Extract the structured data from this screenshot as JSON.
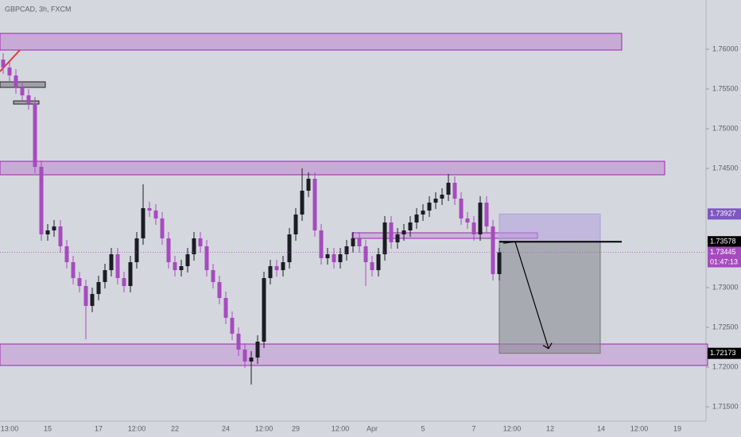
{
  "chart_data": {
    "type": "candlestick",
    "title": "GBPCAD, 3h, FXCM",
    "up_color": "#1c1c24",
    "down_color": "#a64bbf",
    "ylim": [
      1.7132,
      1.7662
    ],
    "yticks": [
      {
        "value": 1.76,
        "label": "1.76000"
      },
      {
        "value": 1.755,
        "label": "1.75500"
      },
      {
        "value": 1.75,
        "label": "1.75000"
      },
      {
        "value": 1.745,
        "label": "1.74500"
      },
      {
        "value": 1.73,
        "label": "1.73000"
      },
      {
        "value": 1.725,
        "label": "1.72500"
      },
      {
        "value": 1.72,
        "label": "1.72000"
      },
      {
        "value": 1.715,
        "label": "1.71500"
      }
    ],
    "categories": [
      null,
      "13:00",
      null,
      null,
      null,
      null,
      null,
      "15",
      null,
      null,
      null,
      null,
      null,
      null,
      null,
      "17",
      null,
      null,
      null,
      null,
      null,
      "12:00",
      null,
      null,
      null,
      null,
      null,
      "22",
      null,
      null,
      null,
      null,
      null,
      null,
      null,
      "24",
      null,
      null,
      null,
      null,
      null,
      "12:00",
      null,
      null,
      null,
      null,
      "29",
      null,
      null,
      null,
      null,
      null,
      null,
      "12:00",
      null,
      null,
      null,
      null,
      "Apr",
      null,
      null,
      null,
      null,
      null,
      null,
      null,
      "5",
      null,
      null,
      null,
      null,
      null,
      null,
      null,
      "7",
      null,
      null,
      null,
      null,
      null,
      "12:00",
      null,
      null,
      null,
      null,
      null,
      "12",
      null,
      null,
      null,
      null,
      null,
      null,
      null,
      "14",
      null,
      null,
      null,
      null,
      null,
      "12:00",
      null,
      null,
      null,
      null,
      null,
      "19",
      null,
      null,
      null
    ],
    "open": [
      1.7587,
      1.7577,
      1.7567,
      1.7552,
      1.7542,
      1.7532,
      1.7452,
      1.7367,
      1.7372,
      1.7377,
      1.7352,
      1.7332,
      1.7312,
      1.7302,
      1.7277,
      1.7292,
      1.7307,
      1.7322,
      1.7342,
      1.7312,
      1.7302,
      1.7332,
      1.7362,
      1.74,
      1.7397,
      1.7387,
      1.7362,
      1.7332,
      1.7322,
      1.7327,
      1.7342,
      1.7362,
      1.7352,
      1.7322,
      1.7307,
      1.7287,
      1.7262,
      1.7242,
      1.7222,
      1.7207,
      1.7212,
      1.7232,
      1.7312,
      1.7327,
      1.7322,
      1.7332,
      1.7367,
      1.7392,
      1.7422,
      1.7437,
      1.7372,
      1.7337,
      1.7342,
      1.7332,
      1.7342,
      1.7352,
      1.7362,
      1.7352,
      1.7332,
      1.7322,
      1.7342,
      1.7382,
      1.7357,
      1.7367,
      1.7372,
      1.7382,
      1.7392,
      1.7397,
      1.7407,
      1.7412,
      1.7417,
      1.7432,
      1.7412,
      1.7387,
      1.7382,
      1.7367,
      1.7407,
      1.7377,
      1.7317,
      null,
      null,
      null,
      null,
      null,
      null,
      null,
      null,
      null,
      null,
      null,
      null,
      null,
      null,
      null,
      null,
      null,
      null,
      null,
      null,
      null,
      null,
      null,
      null,
      null,
      null,
      null,
      null,
      null,
      null,
      null
    ],
    "high": [
      1.7595,
      1.7585,
      1.7575,
      1.756,
      1.755,
      1.754,
      1.746,
      1.738,
      1.7385,
      1.7385,
      1.736,
      1.734,
      1.732,
      1.731,
      1.73,
      1.7315,
      1.733,
      1.735,
      1.735,
      1.732,
      1.734,
      1.737,
      1.743,
      1.7408,
      1.7405,
      1.7395,
      1.737,
      1.734,
      1.7335,
      1.735,
      1.737,
      1.737,
      1.736,
      1.733,
      1.7315,
      1.7295,
      1.727,
      1.725,
      1.723,
      1.722,
      1.724,
      1.732,
      1.7335,
      1.7335,
      1.734,
      1.7375,
      1.74,
      1.745,
      1.7445,
      1.7445,
      1.738,
      1.735,
      1.735,
      1.735,
      1.736,
      1.737,
      1.737,
      1.736,
      1.734,
      1.735,
      1.739,
      1.739,
      1.7375,
      1.738,
      1.739,
      1.74,
      1.7405,
      1.7415,
      1.742,
      1.7425,
      1.7443,
      1.744,
      1.742,
      1.7395,
      1.739,
      1.7415,
      1.7415,
      1.7385,
      1.735,
      null,
      null,
      null,
      null,
      null,
      null,
      null,
      null,
      null,
      null,
      null,
      null,
      null,
      null,
      null,
      null,
      null,
      null,
      null,
      null,
      null,
      null,
      null,
      null,
      null,
      null,
      null,
      null,
      null,
      null,
      null
    ],
    "low": [
      1.7569,
      1.7559,
      1.7544,
      1.7534,
      1.7524,
      1.7444,
      1.7359,
      1.7359,
      1.7364,
      1.7344,
      1.7324,
      1.7304,
      1.7294,
      1.7235,
      1.7269,
      1.7284,
      1.7299,
      1.7314,
      1.7304,
      1.7294,
      1.7294,
      1.7324,
      1.7354,
      1.7389,
      1.7379,
      1.7354,
      1.7324,
      1.7314,
      1.7314,
      1.7319,
      1.7334,
      1.7344,
      1.7314,
      1.7299,
      1.7279,
      1.7254,
      1.7234,
      1.7214,
      1.7199,
      1.7178,
      1.7204,
      1.7224,
      1.7304,
      1.7314,
      1.7314,
      1.7324,
      1.7359,
      1.7384,
      1.7414,
      1.7364,
      1.7329,
      1.7329,
      1.7324,
      1.7324,
      1.7334,
      1.7344,
      1.7344,
      1.7302,
      1.7314,
      1.7314,
      1.7334,
      1.7349,
      1.7349,
      1.7359,
      1.7364,
      1.7374,
      1.7384,
      1.7389,
      1.7399,
      1.7404,
      1.7409,
      1.7404,
      1.7379,
      1.7374,
      1.7359,
      1.7359,
      1.7369,
      1.7309,
      1.7309,
      null,
      null,
      null,
      null,
      null,
      null,
      null,
      null,
      null,
      null,
      null,
      null,
      null,
      null,
      null,
      null,
      null,
      null,
      null,
      null,
      null,
      null,
      null,
      null,
      null,
      null,
      null,
      null,
      null,
      null,
      null
    ],
    "close": [
      1.7577,
      1.7567,
      1.7552,
      1.7542,
      1.7532,
      1.7452,
      1.7367,
      1.7372,
      1.7377,
      1.7352,
      1.7332,
      1.7312,
      1.7302,
      1.7277,
      1.7292,
      1.7307,
      1.7322,
      1.7342,
      1.7312,
      1.7302,
      1.7332,
      1.7362,
      1.74,
      1.7397,
      1.7387,
      1.7362,
      1.7332,
      1.7322,
      1.7327,
      1.7342,
      1.7362,
      1.7352,
      1.7322,
      1.7307,
      1.7287,
      1.7262,
      1.7242,
      1.7222,
      1.7207,
      1.7212,
      1.7232,
      1.7312,
      1.7327,
      1.7322,
      1.7332,
      1.7367,
      1.7392,
      1.7422,
      1.7437,
      1.7372,
      1.7337,
      1.7342,
      1.7332,
      1.7342,
      1.7352,
      1.7362,
      1.7352,
      1.7332,
      1.7322,
      1.7342,
      1.7382,
      1.7357,
      1.7367,
      1.7372,
      1.7382,
      1.7392,
      1.7397,
      1.7407,
      1.7412,
      1.7417,
      1.7432,
      1.7412,
      1.7387,
      1.7382,
      1.7367,
      1.7407,
      1.7377,
      1.7317,
      1.73445,
      null,
      null,
      null,
      null,
      null,
      null,
      null,
      null,
      null,
      null,
      null,
      null,
      null,
      null,
      null,
      null,
      null,
      null,
      null,
      null,
      null,
      null,
      null,
      null,
      null,
      null,
      null,
      null,
      null,
      null,
      null
    ],
    "levels": {
      "stop": 1.73927,
      "entry": 1.73578,
      "target": 1.72173,
      "last": 1.73445,
      "countdown": "01:47:13"
    }
  }
}
